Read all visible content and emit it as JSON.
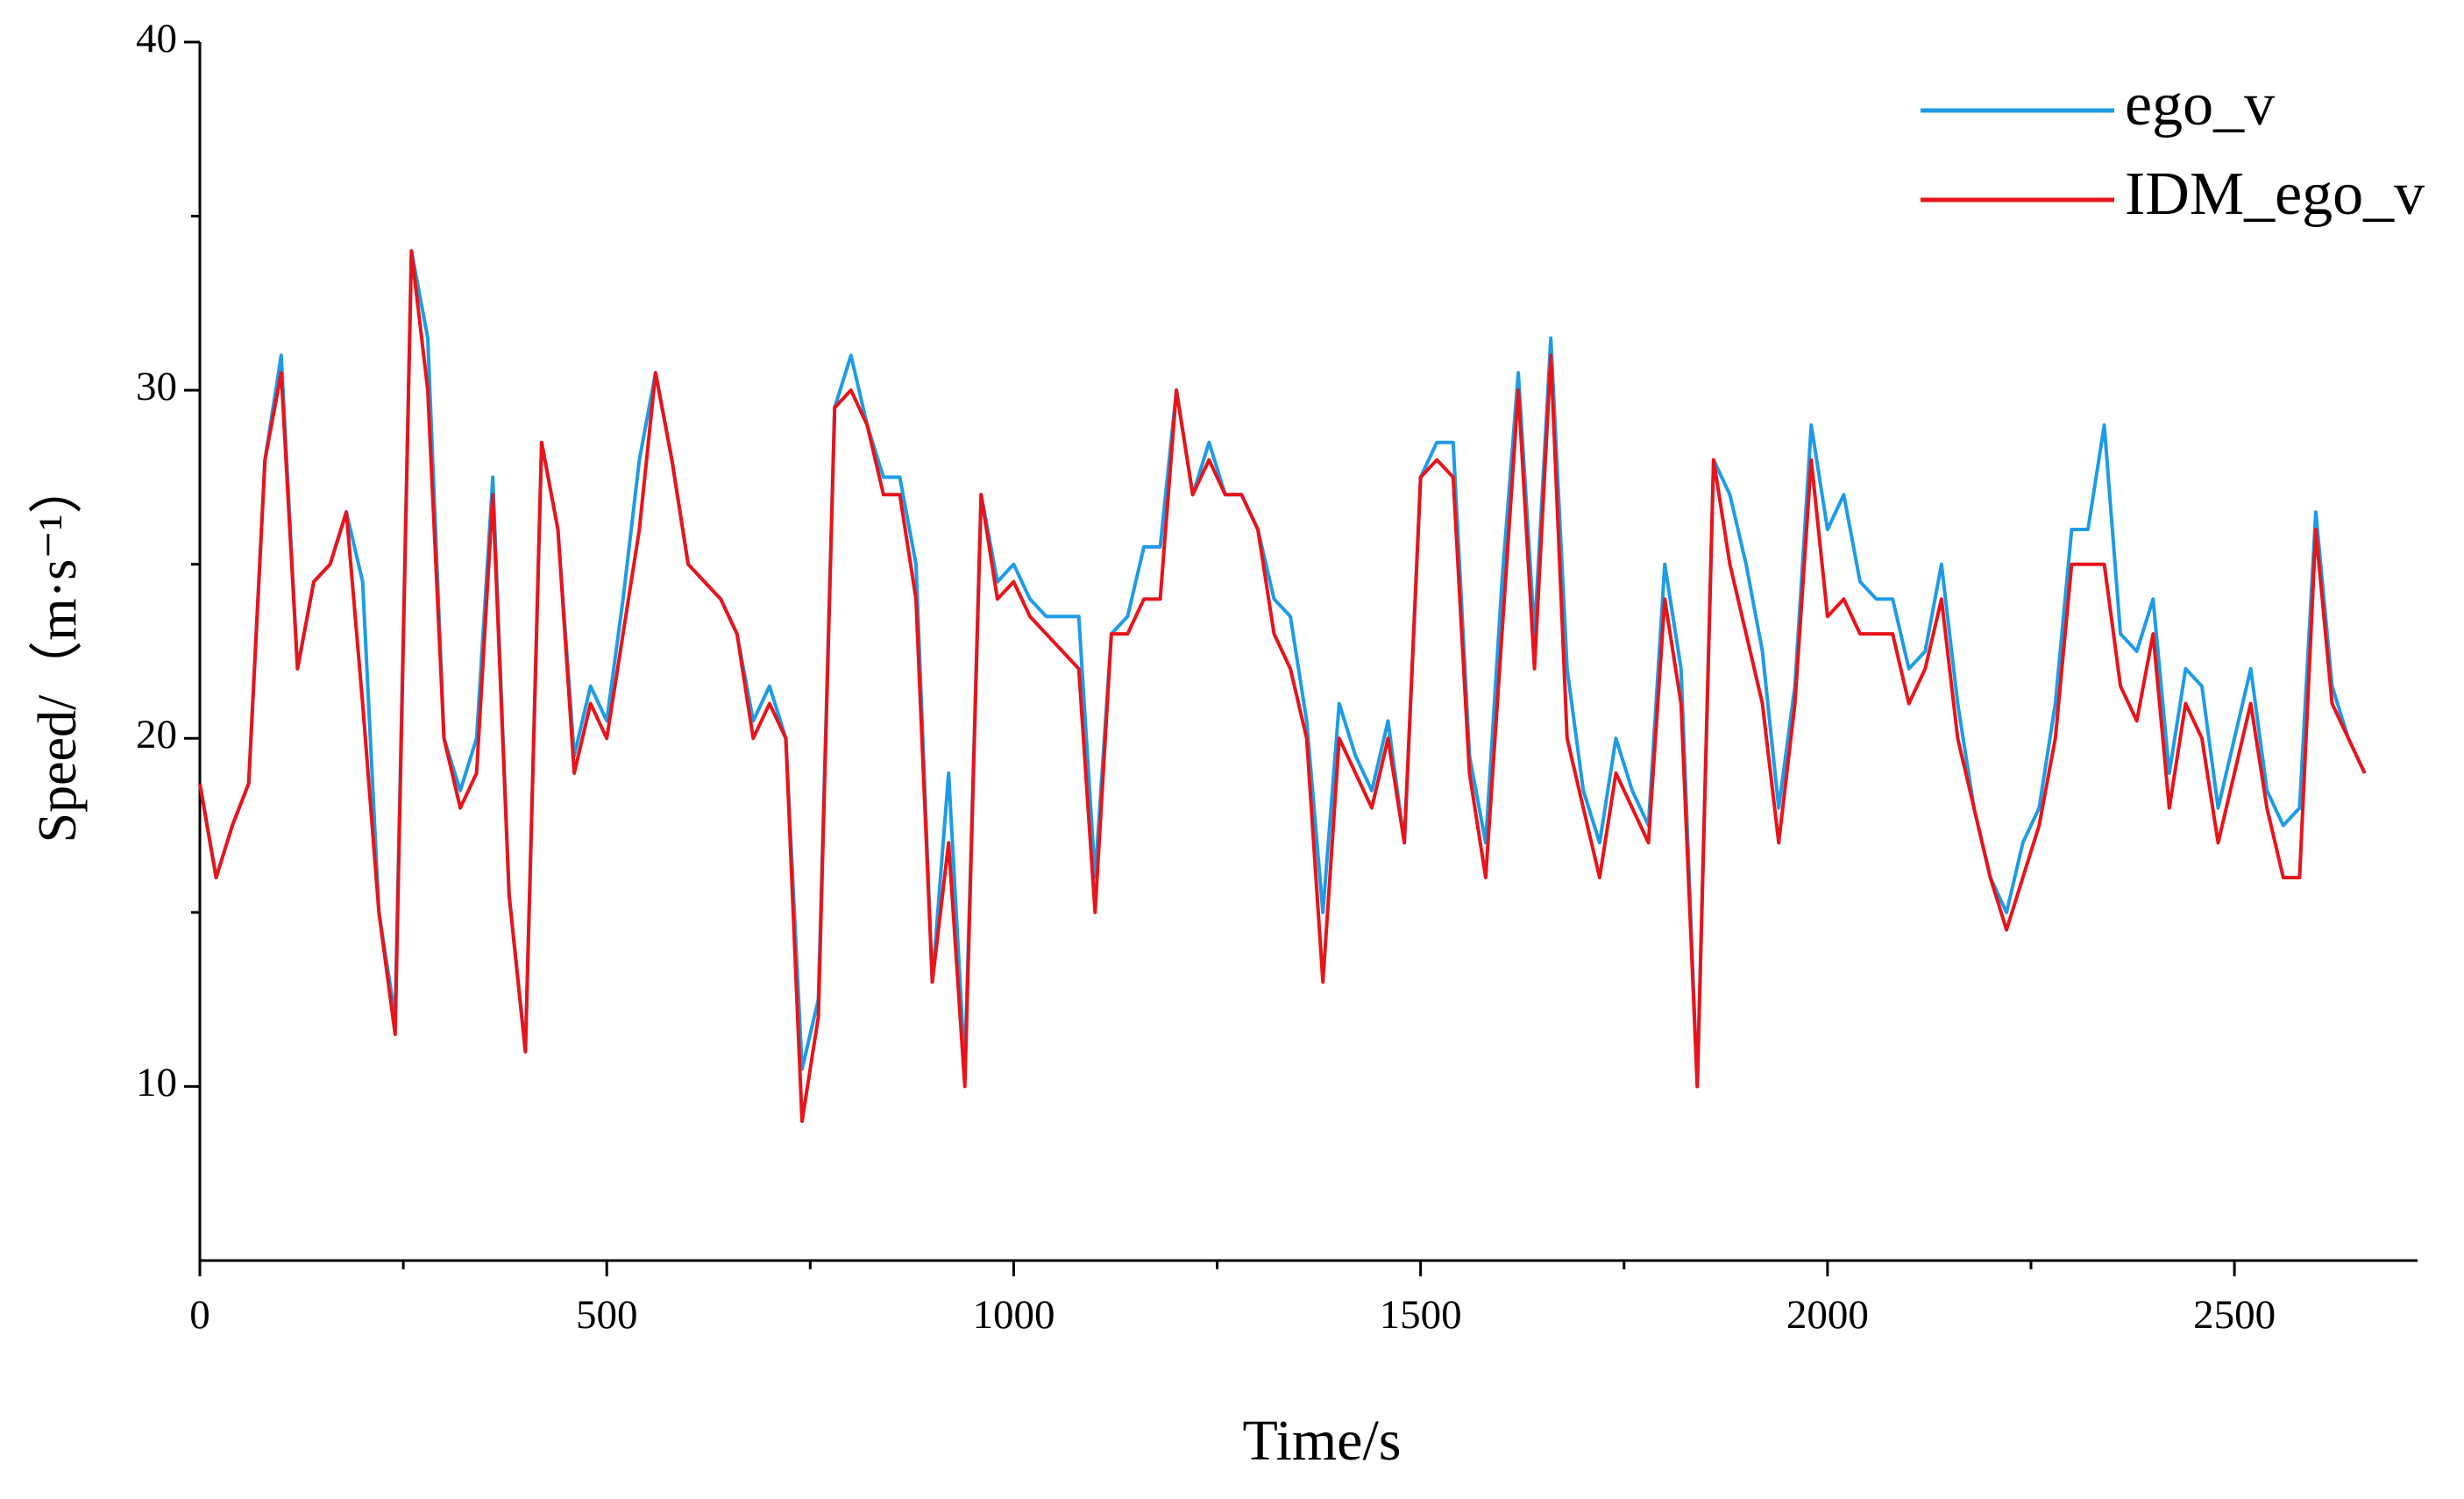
{
  "chart_data": {
    "type": "line",
    "x_label": "Time/s",
    "y_label": "Speed/（m·s⁻¹）",
    "x": [
      0,
      20,
      40,
      60,
      80,
      100,
      120,
      140,
      160,
      180,
      200,
      220,
      240,
      260,
      280,
      300,
      320,
      340,
      360,
      380,
      400,
      420,
      440,
      460,
      480,
      500,
      520,
      540,
      560,
      580,
      600,
      620,
      640,
      660,
      680,
      700,
      720,
      740,
      760,
      780,
      800,
      820,
      840,
      860,
      880,
      900,
      920,
      940,
      960,
      980,
      1000,
      1020,
      1040,
      1060,
      1080,
      1100,
      1120,
      1140,
      1160,
      1180,
      1200,
      1220,
      1240,
      1260,
      1280,
      1300,
      1320,
      1340,
      1360,
      1380,
      1400,
      1420,
      1440,
      1460,
      1480,
      1500,
      1520,
      1540,
      1560,
      1580,
      1600,
      1620,
      1640,
      1660,
      1680,
      1700,
      1720,
      1740,
      1760,
      1780,
      1800,
      1820,
      1840,
      1860,
      1880,
      1900,
      1920,
      1940,
      1960,
      1980,
      2000,
      2020,
      2040,
      2060,
      2080,
      2100,
      2120,
      2140,
      2160,
      2180,
      2200,
      2220,
      2240,
      2260,
      2280,
      2300,
      2320,
      2340,
      2360,
      2380,
      2400,
      2420,
      2440,
      2460,
      2480,
      2500,
      2520,
      2540,
      2560,
      2580,
      2600,
      2620,
      2640,
      2660
    ],
    "series": [
      {
        "name": "ego_v",
        "color": "#1e9be6",
        "values": [
          18.7,
          16,
          17.5,
          18.7,
          28,
          31,
          22,
          24.5,
          25,
          26.5,
          24.5,
          15,
          12,
          34,
          31.5,
          20,
          18.5,
          20,
          27.5,
          15.5,
          11,
          28.5,
          26,
          19.5,
          21.5,
          20.5,
          24,
          28,
          30.5,
          28,
          25,
          24.5,
          24,
          23,
          20.5,
          21.5,
          20,
          10.5,
          12.5,
          29.5,
          31,
          29,
          27.5,
          27.5,
          25,
          13,
          19,
          10.5,
          27,
          24.5,
          25,
          24,
          23.5,
          23.5,
          23.5,
          16,
          23,
          23.5,
          25.5,
          25.5,
          30,
          27,
          28.5,
          27,
          27,
          26,
          24,
          23.5,
          20.5,
          15,
          21,
          19.5,
          18.5,
          20.5,
          17,
          27.5,
          28.5,
          28.5,
          19.5,
          17,
          24.5,
          30.5,
          23,
          31.5,
          22,
          18.5,
          17,
          20,
          18.5,
          17.5,
          25,
          22,
          10,
          28,
          27,
          25,
          22.5,
          18,
          21.5,
          29,
          26,
          27,
          24.5,
          24,
          24,
          22,
          22.5,
          25,
          21,
          18,
          16,
          15,
          17,
          18,
          21,
          26,
          26,
          29,
          23,
          22.5,
          24,
          19,
          22,
          21.5,
          18,
          20,
          22,
          18.5,
          17.5,
          18,
          26.5,
          21.5,
          20,
          19
        ]
      },
      {
        "name": "IDM_ego_v",
        "color": "#e8141a",
        "values": [
          18.7,
          16,
          17.5,
          18.7,
          28,
          30.5,
          22,
          24.5,
          25,
          26.5,
          21,
          15,
          11.5,
          34,
          30,
          20,
          18,
          19,
          27,
          15.5,
          11,
          28.5,
          26,
          19,
          21,
          20,
          23,
          26,
          30.5,
          28,
          25,
          24.5,
          24,
          23,
          20,
          21,
          20,
          9,
          12,
          29.5,
          30,
          29,
          27,
          27,
          24,
          13,
          17,
          10,
          27,
          24,
          24.5,
          23.5,
          23,
          22.5,
          22,
          15,
          23,
          23,
          24,
          24,
          30,
          27,
          28,
          27,
          27,
          26,
          23,
          22,
          20,
          13,
          20,
          19,
          18,
          20,
          17,
          27.5,
          28,
          27.5,
          19,
          16,
          23,
          30,
          22,
          31,
          20,
          18,
          16,
          19,
          18,
          17,
          24,
          21,
          10,
          28,
          25,
          23,
          21,
          17,
          21,
          28,
          23.5,
          24,
          23,
          23,
          23,
          21,
          22,
          24,
          20,
          18,
          16,
          14.5,
          16,
          17.5,
          20,
          25,
          25,
          25,
          21.5,
          20.5,
          23,
          18,
          21,
          20,
          17,
          19,
          21,
          18,
          16,
          16,
          26,
          21,
          20,
          19
        ]
      }
    ],
    "xlim": [
      0,
      2725
    ],
    "xticks": [
      0,
      500,
      1000,
      1500,
      2000,
      2500
    ],
    "xminorticks": [
      250,
      750,
      1250,
      1750,
      2250
    ],
    "ylim": [
      5,
      40
    ],
    "yticks": [
      10,
      20,
      30,
      40
    ],
    "yminorticks": [
      15,
      25,
      35
    ],
    "legend": "upper right",
    "grid": false
  }
}
